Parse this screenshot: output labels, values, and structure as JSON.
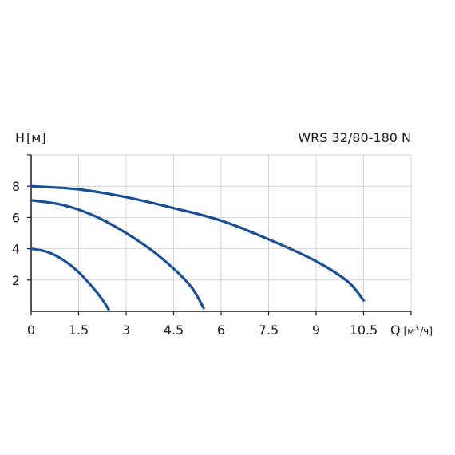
{
  "chart_data": {
    "type": "line",
    "title": "WRS 32/80-180 N",
    "ylabel": {
      "symbol": "H",
      "unit": "[м]"
    },
    "xlabel": {
      "symbol": "Q",
      "unit_open": "[м",
      "unit_sup": "3",
      "unit_close": "/ч]"
    },
    "xlim": [
      0,
      12
    ],
    "ylim": [
      0,
      10
    ],
    "xticks": [
      0,
      1.5,
      3,
      4.5,
      6,
      7.5,
      9,
      10.5
    ],
    "xtick_labels": [
      "0",
      "1.5",
      "3",
      "4.5",
      "6",
      "7.5",
      "9",
      "10.5"
    ],
    "yticks": [
      2,
      4,
      6,
      8
    ],
    "ytick_labels": [
      "2",
      "4",
      "6",
      "8"
    ],
    "grid": true,
    "series": [
      {
        "x": [
          0,
          0.5,
          1.0,
          1.5,
          2.0,
          2.3,
          2.45
        ],
        "y": [
          4.0,
          3.8,
          3.3,
          2.5,
          1.4,
          0.6,
          0.1
        ]
      },
      {
        "x": [
          0,
          1.0,
          2.0,
          3.0,
          4.0,
          5.0,
          5.45
        ],
        "y": [
          7.1,
          6.8,
          6.1,
          5.0,
          3.6,
          1.7,
          0.2
        ]
      },
      {
        "x": [
          0,
          1.5,
          3.0,
          4.5,
          6.0,
          7.5,
          9.0,
          10.0,
          10.5
        ],
        "y": [
          8.0,
          7.8,
          7.3,
          6.6,
          5.8,
          4.6,
          3.2,
          1.9,
          0.7
        ]
      }
    ],
    "colors": {
      "line": "#1b4f93",
      "grid": "#d4d4d4",
      "axis": "#1a1a1a"
    }
  }
}
